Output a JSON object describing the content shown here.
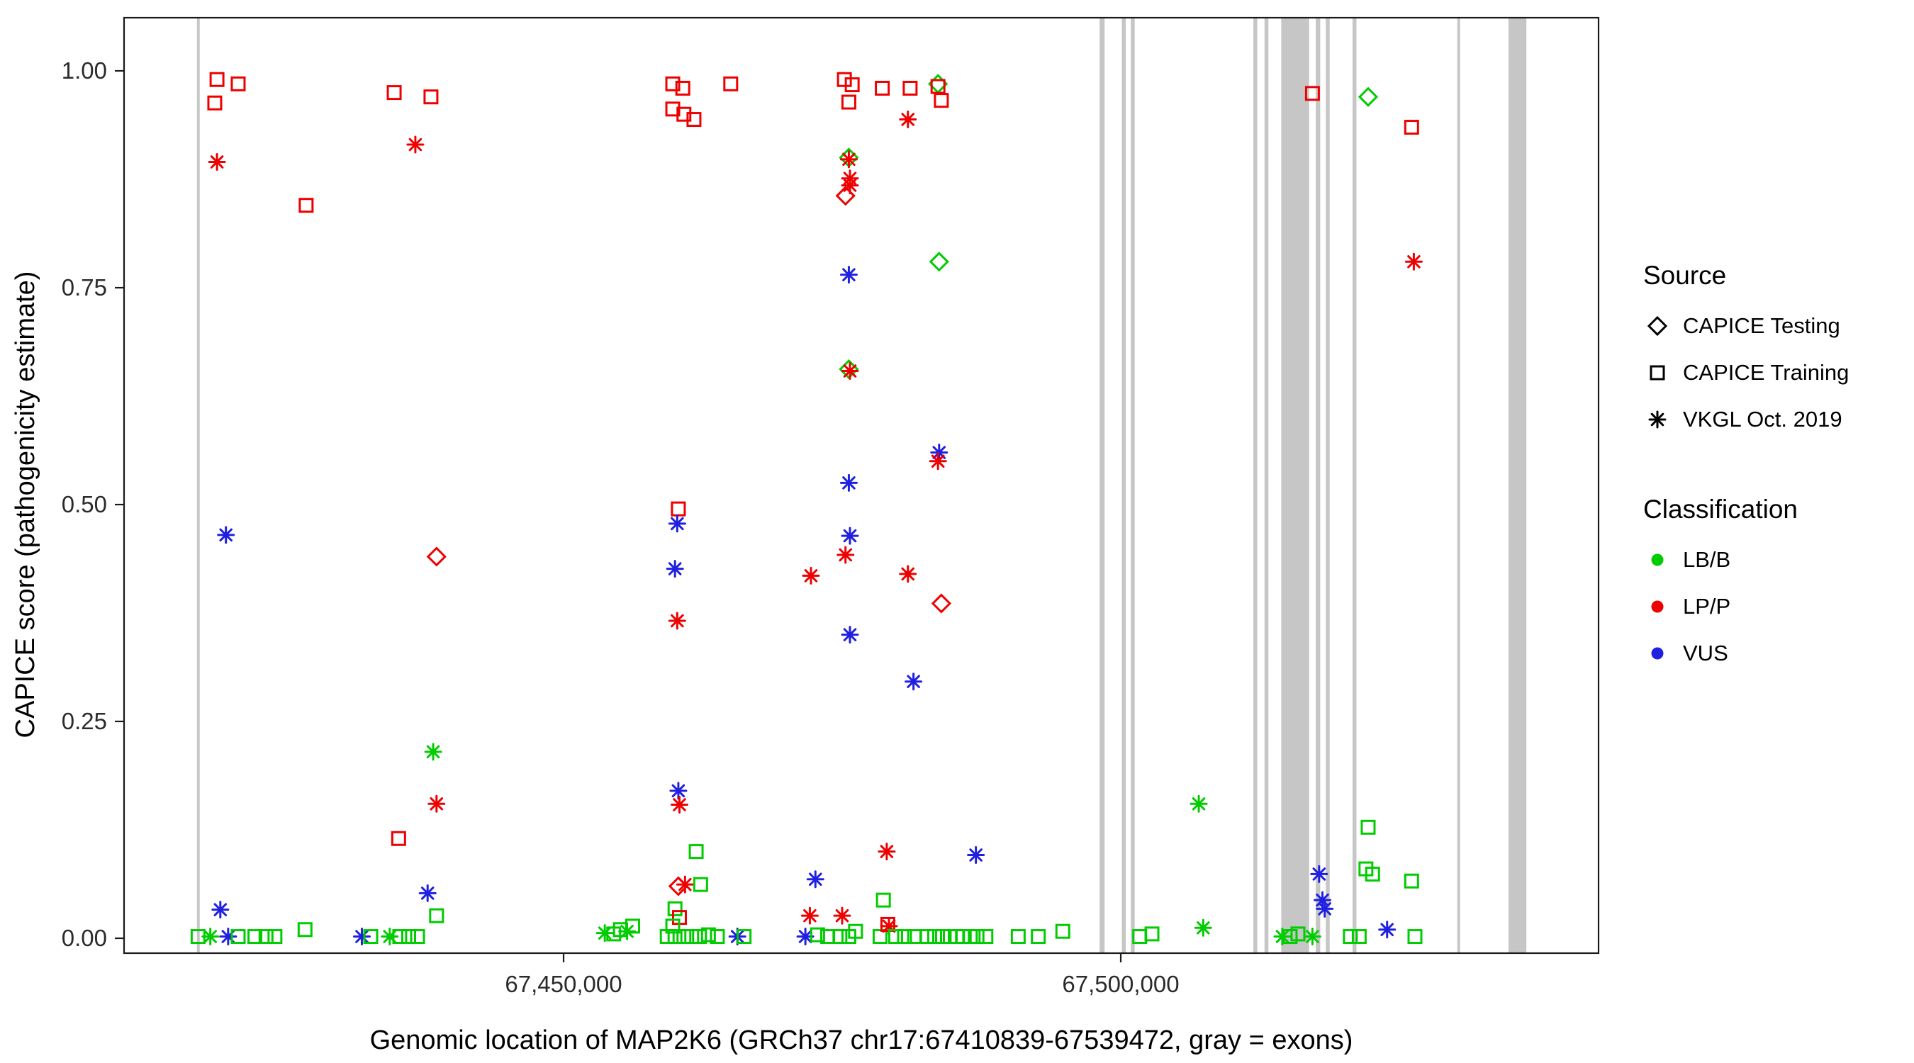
{
  "legend": {
    "source": {
      "title": "Source",
      "items": [
        {
          "label": "CAPICE Testing",
          "marker": "diamond"
        },
        {
          "label": "CAPICE Training",
          "marker": "square"
        },
        {
          "label": "VKGL Oct. 2019",
          "marker": "asterisk"
        }
      ]
    },
    "classification": {
      "title": "Classification",
      "items": [
        {
          "label": "LB/B",
          "color": "#00cc00"
        },
        {
          "label": "LP/P",
          "color": "#ee0000"
        },
        {
          "label": "VUS",
          "color": "#2020e0"
        }
      ]
    }
  },
  "chart_data": {
    "type": "scatter",
    "title": "",
    "xlabel": "Genomic location of MAP2K6 (GRCh37 chr17:67410839-67539472, gray = exons)",
    "ylabel": "CAPICE score (pathogenicity estimate)",
    "x_domain": [
      67410560,
      67542875
    ],
    "x_ticks": [
      {
        "value": 67450000,
        "label": "67,450,000"
      },
      {
        "value": 67500000,
        "label": "67,500,000"
      }
    ],
    "y_ticks": [
      {
        "value": 0,
        "label": "0.00"
      },
      {
        "value": 0.25,
        "label": "0.25"
      },
      {
        "value": 0.5,
        "label": "0.50"
      },
      {
        "value": 0.75,
        "label": "0.75"
      },
      {
        "value": 1,
        "label": "1.00"
      }
    ],
    "grid": false,
    "legend_position": "right",
    "exon_color": "#c6c6c6",
    "class_colors": {
      "B": "#00cc00",
      "P": "#ee0000",
      "U": "#2020e0"
    },
    "class_codes": {
      "B": "LB/B",
      "P": "LP/P",
      "U": "VUS"
    },
    "source_markers": {
      "T": "diamond",
      "R": "square",
      "V": "asterisk"
    },
    "source_codes": {
      "T": "CAPICE Testing",
      "R": "CAPICE Training",
      "V": "VKGL Oct. 2019"
    },
    "exons": [
      [
        67417100,
        67417350
      ],
      [
        67498100,
        67498550
      ],
      [
        67500100,
        67500450
      ],
      [
        67500900,
        67501250
      ],
      [
        67511900,
        67512250
      ],
      [
        67512900,
        67513250
      ],
      [
        67514400,
        67516900
      ],
      [
        67517500,
        67517900
      ],
      [
        67518400,
        67518750
      ],
      [
        67520800,
        67521150
      ],
      [
        67530200,
        67530450
      ],
      [
        67534800,
        67536400
      ]
    ],
    "points_columns": [
      "genomic_position",
      "capice_score",
      "source",
      "classification"
    ],
    "points": [
      [
        67418900,
        0.99,
        "R",
        "P"
      ],
      [
        67420800,
        0.985,
        "R",
        "P"
      ],
      [
        67418700,
        0.963,
        "R",
        "P"
      ],
      [
        67418900,
        0.895,
        "V",
        "P"
      ],
      [
        67419700,
        0.465,
        "V",
        "U"
      ],
      [
        67419200,
        0.033,
        "V",
        "U"
      ],
      [
        67417200,
        0.002,
        "R",
        "B"
      ],
      [
        67418300,
        0.002,
        "V",
        "B"
      ],
      [
        67419900,
        0.002,
        "V",
        "U"
      ],
      [
        67420800,
        0.002,
        "R",
        "B"
      ],
      [
        67422300,
        0.002,
        "R",
        "B"
      ],
      [
        67423300,
        0.002,
        "R",
        "B"
      ],
      [
        67424100,
        0.002,
        "R",
        "B"
      ],
      [
        67426800,
        0.01,
        "R",
        "B"
      ],
      [
        67426900,
        0.845,
        "R",
        "P"
      ],
      [
        67431900,
        0.002,
        "V",
        "U"
      ],
      [
        67432700,
        0.002,
        "R",
        "B"
      ],
      [
        67434800,
        0.975,
        "R",
        "P"
      ],
      [
        67438100,
        0.97,
        "R",
        "P"
      ],
      [
        67436700,
        0.915,
        "V",
        "P"
      ],
      [
        67438600,
        0.44,
        "T",
        "P"
      ],
      [
        67438300,
        0.215,
        "V",
        "B"
      ],
      [
        67438600,
        0.155,
        "V",
        "P"
      ],
      [
        67435200,
        0.115,
        "R",
        "P"
      ],
      [
        67437800,
        0.052,
        "V",
        "U"
      ],
      [
        67438600,
        0.026,
        "R",
        "B"
      ],
      [
        67434400,
        0.002,
        "V",
        "B"
      ],
      [
        67435300,
        0.002,
        "R",
        "B"
      ],
      [
        67436100,
        0.002,
        "R",
        "B"
      ],
      [
        67436900,
        0.002,
        "R",
        "B"
      ],
      [
        67453700,
        0.006,
        "V",
        "B"
      ],
      [
        67454500,
        0.005,
        "R",
        "B"
      ],
      [
        67455100,
        0.01,
        "R",
        "B"
      ],
      [
        67455700,
        0.008,
        "V",
        "B"
      ],
      [
        67456200,
        0.014,
        "R",
        "B"
      ],
      [
        67459800,
        0.985,
        "R",
        "P"
      ],
      [
        67460700,
        0.98,
        "R",
        "P"
      ],
      [
        67459800,
        0.956,
        "R",
        "P"
      ],
      [
        67460800,
        0.95,
        "R",
        "P"
      ],
      [
        67461700,
        0.944,
        "R",
        "P"
      ],
      [
        67465000,
        0.985,
        "R",
        "P"
      ],
      [
        67460300,
        0.495,
        "R",
        "P"
      ],
      [
        67460200,
        0.478,
        "V",
        "U"
      ],
      [
        67460000,
        0.426,
        "V",
        "U"
      ],
      [
        67460200,
        0.366,
        "V",
        "P"
      ],
      [
        67460300,
        0.17,
        "V",
        "U"
      ],
      [
        67460400,
        0.154,
        "V",
        "P"
      ],
      [
        67461900,
        0.1,
        "R",
        "B"
      ],
      [
        67460300,
        0.06,
        "T",
        "P"
      ],
      [
        67460900,
        0.062,
        "V",
        "P"
      ],
      [
        67462300,
        0.062,
        "R",
        "B"
      ],
      [
        67460000,
        0.034,
        "R",
        "B"
      ],
      [
        67460400,
        0.024,
        "R",
        "P"
      ],
      [
        67459800,
        0.014,
        "R",
        "B"
      ],
      [
        67459300,
        0.002,
        "R",
        "B"
      ],
      [
        67460000,
        0.002,
        "R",
        "B"
      ],
      [
        67460800,
        0.002,
        "R",
        "B"
      ],
      [
        67461500,
        0.002,
        "R",
        "B"
      ],
      [
        67462200,
        0.002,
        "R",
        "B"
      ],
      [
        67463000,
        0.004,
        "R",
        "B"
      ],
      [
        67463800,
        0.002,
        "R",
        "B"
      ],
      [
        67465600,
        0.002,
        "V",
        "U"
      ],
      [
        67466200,
        0.002,
        "R",
        "B"
      ],
      [
        67472200,
        0.418,
        "V",
        "P"
      ],
      [
        67472600,
        0.068,
        "V",
        "U"
      ],
      [
        67472100,
        0.026,
        "V",
        "P"
      ],
      [
        67471700,
        0.002,
        "V",
        "U"
      ],
      [
        67472800,
        0.004,
        "R",
        "B"
      ],
      [
        67473700,
        0.002,
        "R",
        "B"
      ],
      [
        67475200,
        0.99,
        "R",
        "P"
      ],
      [
        67475900,
        0.984,
        "R",
        "P"
      ],
      [
        67475600,
        0.964,
        "R",
        "P"
      ],
      [
        67475600,
        0.9,
        "T",
        "B"
      ],
      [
        67475600,
        0.898,
        "V",
        "P"
      ],
      [
        67475700,
        0.876,
        "V",
        "P"
      ],
      [
        67475700,
        0.868,
        "V",
        "P"
      ],
      [
        67475300,
        0.856,
        "T",
        "P"
      ],
      [
        67475600,
        0.765,
        "V",
        "U"
      ],
      [
        67475600,
        0.656,
        "T",
        "B"
      ],
      [
        67475700,
        0.654,
        "V",
        "P"
      ],
      [
        67475600,
        0.525,
        "V",
        "U"
      ],
      [
        67475700,
        0.464,
        "V",
        "U"
      ],
      [
        67475300,
        0.442,
        "V",
        "P"
      ],
      [
        67475700,
        0.35,
        "V",
        "U"
      ],
      [
        67475000,
        0.026,
        "V",
        "P"
      ],
      [
        67474800,
        0.002,
        "R",
        "B"
      ],
      [
        67475600,
        0.002,
        "R",
        "B"
      ],
      [
        67476200,
        0.008,
        "R",
        "B"
      ],
      [
        67478600,
        0.98,
        "R",
        "P"
      ],
      [
        67479000,
        0.1,
        "V",
        "P"
      ],
      [
        67478700,
        0.044,
        "R",
        "B"
      ],
      [
        67478400,
        0.002,
        "R",
        "B"
      ],
      [
        67479100,
        0.016,
        "R",
        "P"
      ],
      [
        67479200,
        0.014,
        "V",
        "P"
      ],
      [
        67479800,
        0.002,
        "R",
        "B"
      ],
      [
        67481100,
        0.98,
        "R",
        "P"
      ],
      [
        67480900,
        0.944,
        "V",
        "P"
      ],
      [
        67480900,
        0.42,
        "V",
        "P"
      ],
      [
        67481400,
        0.296,
        "V",
        "U"
      ],
      [
        67480600,
        0.002,
        "R",
        "B"
      ],
      [
        67481500,
        0.002,
        "R",
        "B"
      ],
      [
        67483600,
        0.985,
        "T",
        "B"
      ],
      [
        67483600,
        0.982,
        "R",
        "P"
      ],
      [
        67483900,
        0.966,
        "R",
        "P"
      ],
      [
        67483700,
        0.78,
        "T",
        "B"
      ],
      [
        67483700,
        0.56,
        "V",
        "U"
      ],
      [
        67483600,
        0.55,
        "V",
        "P"
      ],
      [
        67483900,
        0.386,
        "T",
        "P"
      ],
      [
        67482600,
        0.002,
        "R",
        "B"
      ],
      [
        67483300,
        0.002,
        "R",
        "B"
      ],
      [
        67484000,
        0.002,
        "R",
        "B"
      ],
      [
        67484700,
        0.002,
        "R",
        "B"
      ],
      [
        67485300,
        0.002,
        "R",
        "B"
      ],
      [
        67485800,
        0.002,
        "R",
        "B"
      ],
      [
        67486500,
        0.002,
        "R",
        "B"
      ],
      [
        67487100,
        0.002,
        "R",
        "B"
      ],
      [
        67487900,
        0.002,
        "R",
        "B"
      ],
      [
        67487000,
        0.096,
        "V",
        "U"
      ],
      [
        67490800,
        0.002,
        "R",
        "B"
      ],
      [
        67492600,
        0.002,
        "R",
        "B"
      ],
      [
        67494800,
        0.008,
        "R",
        "B"
      ],
      [
        67501700,
        0.002,
        "R",
        "B"
      ],
      [
        67502800,
        0.005,
        "R",
        "B"
      ],
      [
        67507000,
        0.155,
        "V",
        "B"
      ],
      [
        67507400,
        0.012,
        "V",
        "B"
      ],
      [
        67514500,
        0.002,
        "V",
        "B"
      ],
      [
        67515200,
        0.002,
        "R",
        "B"
      ],
      [
        67515900,
        0.005,
        "R",
        "B"
      ],
      [
        67517200,
        0.974,
        "R",
        "P"
      ],
      [
        67517800,
        0.074,
        "V",
        "U"
      ],
      [
        67518100,
        0.044,
        "V",
        "U"
      ],
      [
        67518300,
        0.034,
        "V",
        "U"
      ],
      [
        67517200,
        0.002,
        "V",
        "B"
      ],
      [
        67520600,
        0.002,
        "R",
        "B"
      ],
      [
        67521400,
        0.002,
        "R",
        "B"
      ],
      [
        67522200,
        0.97,
        "T",
        "B"
      ],
      [
        67522200,
        0.128,
        "R",
        "B"
      ],
      [
        67522000,
        0.08,
        "R",
        "B"
      ],
      [
        67522600,
        0.074,
        "R",
        "B"
      ],
      [
        67523900,
        0.01,
        "V",
        "U"
      ],
      [
        67526100,
        0.935,
        "R",
        "P"
      ],
      [
        67526300,
        0.78,
        "V",
        "P"
      ],
      [
        67526100,
        0.066,
        "R",
        "B"
      ],
      [
        67526400,
        0.002,
        "R",
        "B"
      ]
    ]
  }
}
